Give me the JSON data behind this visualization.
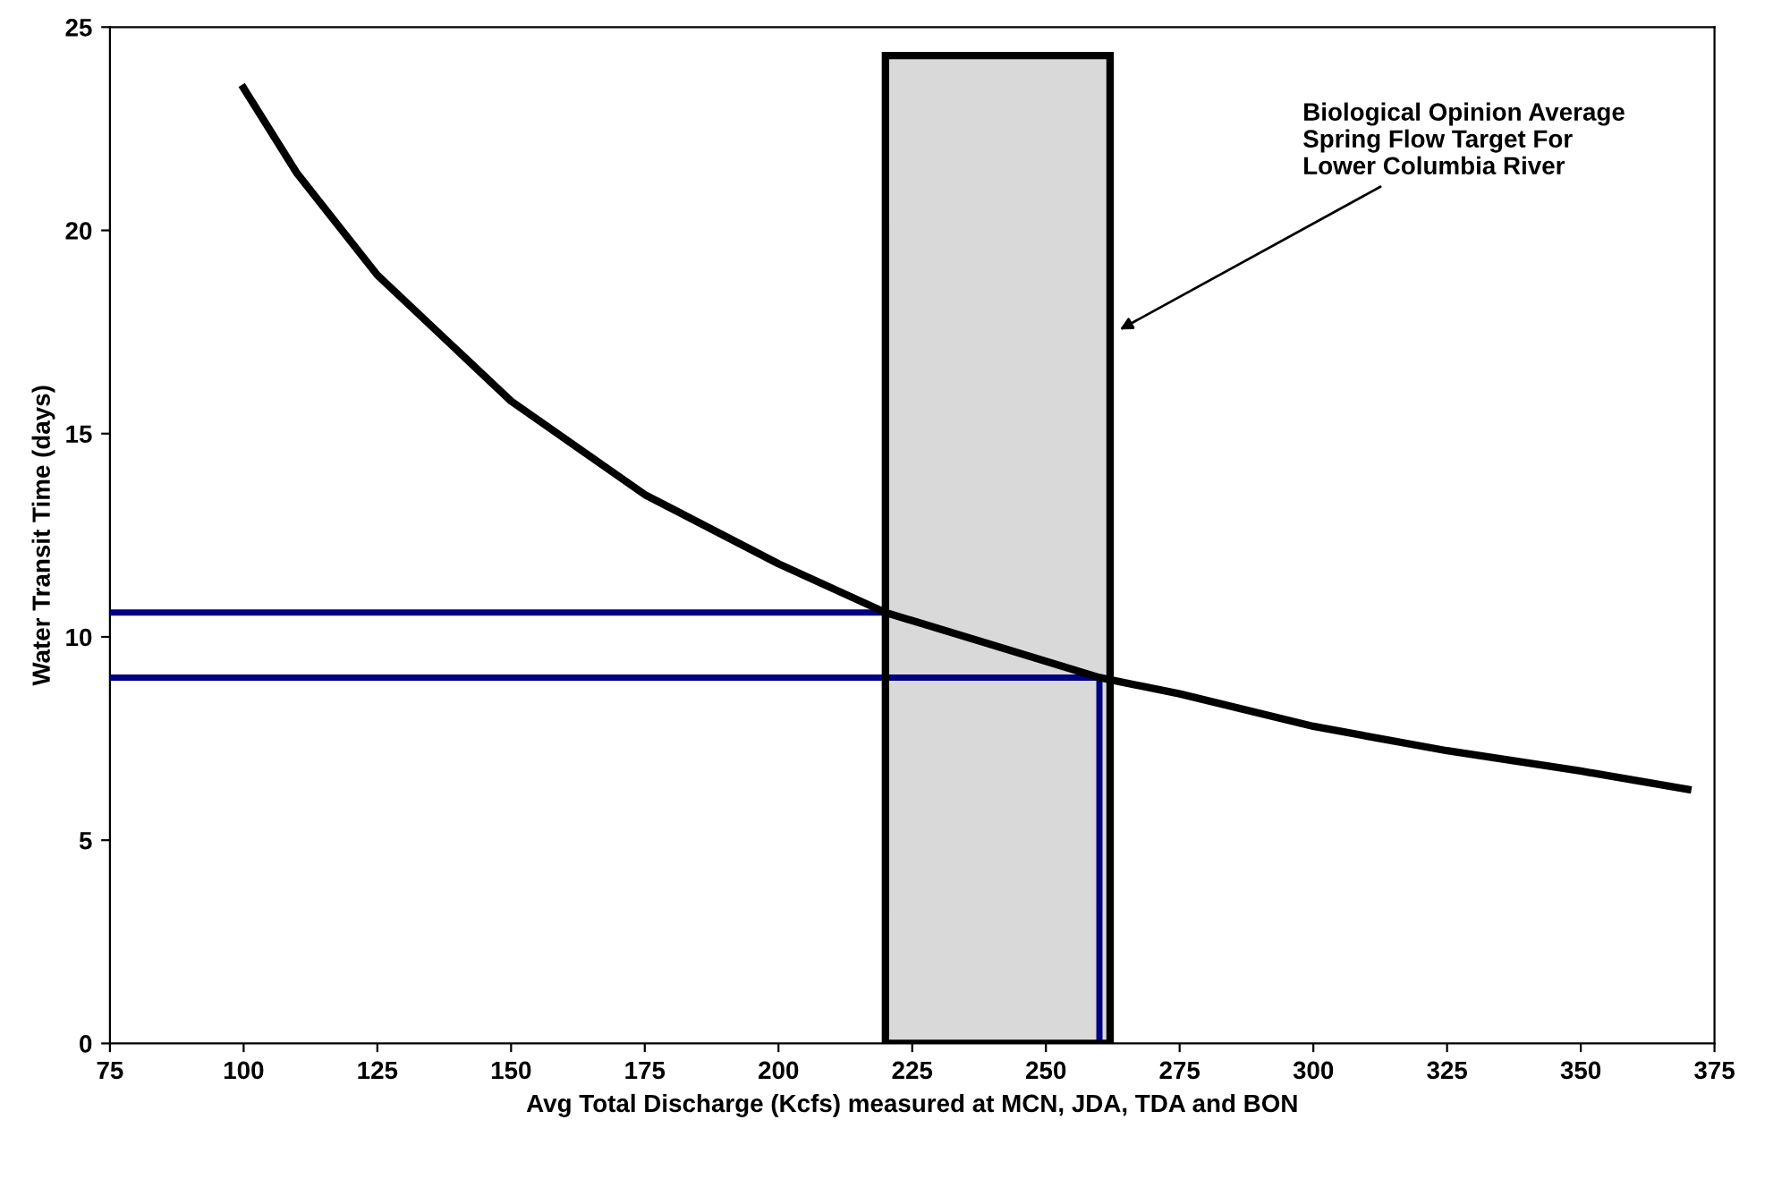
{
  "chart_data": {
    "type": "line",
    "xlabel": "Avg Total Discharge (Kcfs) measured at MCN, JDA, TDA and BON",
    "ylabel": "Water Transit Time (days)",
    "xlim": [
      75,
      375
    ],
    "xticks": [
      75,
      100,
      125,
      150,
      175,
      200,
      225,
      250,
      275,
      300,
      325,
      350,
      375
    ],
    "ylim": [
      0,
      25
    ],
    "yticks": [
      0,
      5,
      10,
      15,
      20,
      25
    ],
    "grid": false,
    "legend": false,
    "marker": "none",
    "series": [
      {
        "color": "#000000",
        "line_style": "solid",
        "x": [
          100,
          110,
          125,
          150,
          175,
          200,
          220,
          240,
          260,
          275,
          300,
          325,
          350,
          370
        ],
        "values": [
          23.5,
          21.4,
          18.9,
          15.8,
          13.5,
          11.8,
          10.6,
          9.8,
          9.0,
          8.6,
          7.8,
          7.2,
          6.7,
          6.25
        ]
      },
      {
        "color": "#000080",
        "line_style": "solid",
        "x": [
          75,
          220
        ],
        "values": [
          10.6,
          10.6
        ]
      },
      {
        "color": "#000080",
        "line_style": "solid",
        "x": [
          75,
          260,
          260
        ],
        "values": [
          9.0,
          9.0,
          0
        ]
      }
    ],
    "bands": [
      {
        "axis": "x",
        "from": 220,
        "to": 262,
        "color": "#d9d9d9"
      }
    ],
    "annotations": [
      {
        "text": "Biological Opinion Average\nSpring Flow Target For\nLower Columbia River",
        "x": 263,
        "y": 17.5
      }
    ]
  }
}
